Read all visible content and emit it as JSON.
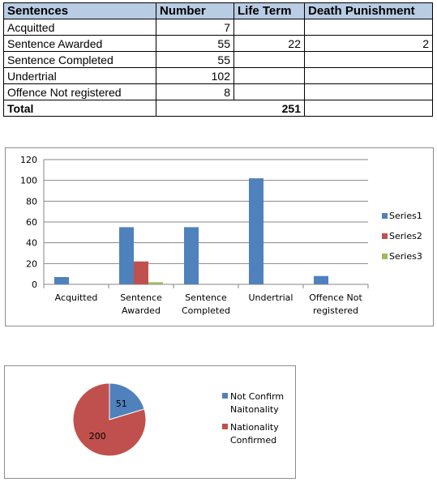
{
  "table": {
    "headers": [
      "Sentences",
      "Number",
      "Life Term",
      "Death Punishment"
    ],
    "rows": [
      [
        "Acquitted",
        "7",
        "",
        ""
      ],
      [
        "Sentence Awarded",
        "55",
        "22",
        "2"
      ],
      [
        "Sentence Completed",
        "55",
        "",
        ""
      ],
      [
        "Undertrial",
        "102",
        "",
        ""
      ],
      [
        "Offence Not registered",
        "8",
        "",
        ""
      ]
    ],
    "total_label": "Total",
    "total_value": "251"
  },
  "chart_data": [
    {
      "type": "bar",
      "categories": [
        "Acquitted",
        "Sentence Awarded",
        "Sentence Completed",
        "Undertrial",
        "Offence Not registered"
      ],
      "category_lines": [
        [
          "Acquitted"
        ],
        [
          "Sentence",
          "Awarded"
        ],
        [
          "Sentence",
          "Completed"
        ],
        [
          "Undertrial"
        ],
        [
          "Offence Not",
          "registered"
        ]
      ],
      "series": [
        {
          "name": "Series1",
          "values": [
            7,
            55,
            55,
            102,
            8
          ],
          "color": "#4f81bd"
        },
        {
          "name": "Series2",
          "values": [
            0,
            22,
            0,
            0,
            0
          ],
          "color": "#c0504d"
        },
        {
          "name": "Series3",
          "values": [
            0,
            2,
            0,
            0,
            0
          ],
          "color": "#9bbb59"
        }
      ],
      "yticks": [
        "0",
        "20",
        "40",
        "60",
        "80",
        "100",
        "120"
      ],
      "ylim": [
        0,
        120
      ],
      "grid": true,
      "legend": "right"
    },
    {
      "type": "pie",
      "slices": [
        {
          "label": "Not Confirm Naitonality",
          "label_lines": [
            "Not Confirm",
            "Naitonality"
          ],
          "value": 51,
          "display": "51",
          "color": "#4f81bd"
        },
        {
          "label": "Nationality Confirmed",
          "label_lines": [
            "Nationality",
            "Confirmed"
          ],
          "value": 200,
          "display": "200",
          "color": "#c0504d"
        }
      ],
      "legend": "right"
    }
  ]
}
